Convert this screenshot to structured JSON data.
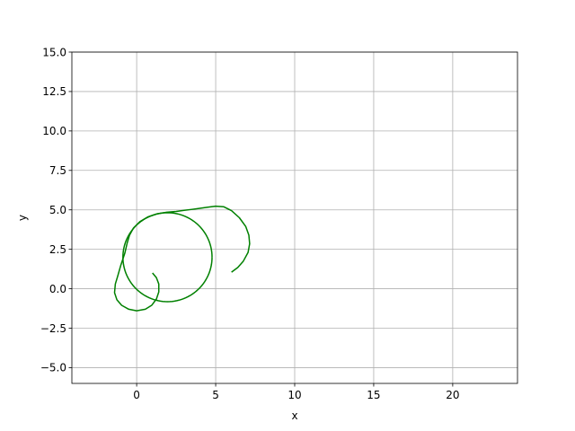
{
  "chart_data": {
    "type": "line",
    "title": "",
    "xlabel": "x",
    "ylabel": "y",
    "xlim": [
      -4.1,
      24.1
    ],
    "ylim": [
      -6.0,
      15.0
    ],
    "xticks": [
      0,
      5,
      10,
      15,
      20
    ],
    "yticks": [
      -5.0,
      -2.5,
      0.0,
      2.5,
      5.0,
      7.5,
      10.0,
      12.5,
      15.0
    ],
    "xtick_labels": [
      "0",
      "5",
      "10",
      "15",
      "20"
    ],
    "ytick_labels": [
      "−5.0",
      "−2.5",
      "0.0",
      "2.5",
      "5.0",
      "7.5",
      "10.0",
      "12.5",
      "15.0"
    ],
    "grid": true,
    "series": [
      {
        "color": "#008000",
        "x": [
          1.0,
          1.25,
          1.4,
          1.4,
          1.25,
          0.95,
          0.55,
          0.0,
          -0.5,
          -0.95,
          -1.25,
          -1.4,
          -1.35,
          -1.2,
          -1.0,
          -0.75,
          -0.6,
          -0.45,
          -0.2,
          0.2,
          0.7,
          1.3,
          1.9,
          2.5,
          3.0,
          3.5,
          4.0,
          4.5,
          5.0,
          5.5,
          6.0,
          6.5,
          6.9,
          7.1,
          7.15,
          7.05,
          6.75,
          6.4,
          6.0
        ],
        "y": [
          1.0,
          0.7,
          0.3,
          -0.2,
          -0.65,
          -1.05,
          -1.3,
          -1.4,
          -1.3,
          -1.05,
          -0.7,
          -0.25,
          0.3,
          0.8,
          1.5,
          2.25,
          2.9,
          3.4,
          3.85,
          4.25,
          4.55,
          4.75,
          4.85,
          4.9,
          4.97,
          5.03,
          5.1,
          5.17,
          5.23,
          5.2,
          4.95,
          4.5,
          3.95,
          3.4,
          2.85,
          2.3,
          1.75,
          1.35,
          1.05
        ]
      },
      {
        "color": "#008000",
        "circle": {
          "center": [
            1.95,
            2.0
          ],
          "radius": 2.82
        }
      }
    ]
  }
}
